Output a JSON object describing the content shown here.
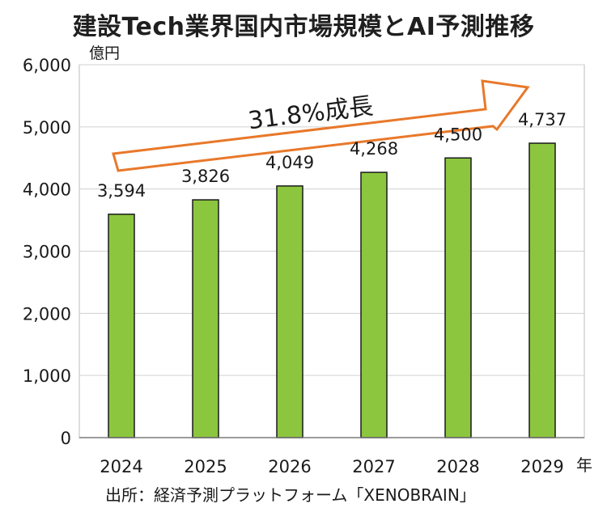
{
  "chart_data": {
    "type": "bar",
    "title": "建設Tech業界国内市場規模とAI予測推移",
    "ylabel": "億円",
    "xlabel": "年",
    "categories": [
      "2024",
      "2025",
      "2026",
      "2027",
      "2028",
      "2029"
    ],
    "values": [
      3594,
      3826,
      4049,
      4268,
      4500,
      4737
    ],
    "data_labels": [
      "3,594",
      "3,826",
      "4,049",
      "4,268",
      "4,500",
      "4,737"
    ],
    "ylim": [
      0,
      6000
    ],
    "yticks": [
      0,
      1000,
      2000,
      3000,
      4000,
      5000,
      6000
    ],
    "ytick_labels": [
      "0",
      "1,000",
      "2,000",
      "3,000",
      "4,000",
      "5,000",
      "6,000"
    ],
    "grid": true,
    "annotation": "31.8%成長",
    "source": "出所：経済予測プラットフォーム「XENOBRAIN」",
    "colors": {
      "bar_fill": "#8CC63F",
      "bar_stroke": "#1a1a1a",
      "grid": "#d0d0d0",
      "arrow": "#E8782A"
    }
  }
}
